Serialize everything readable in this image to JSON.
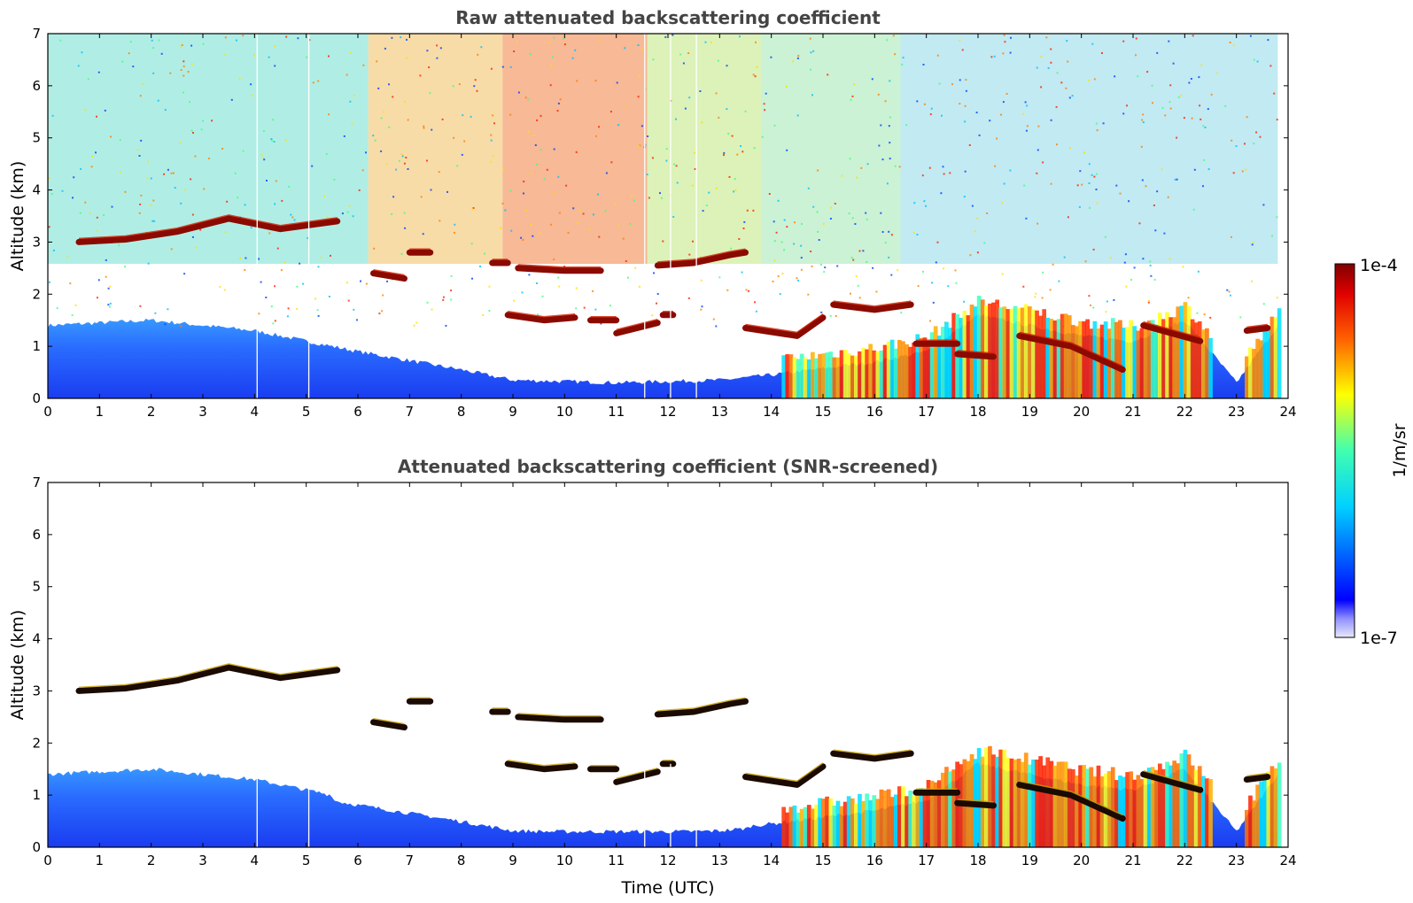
{
  "chart_data": [
    {
      "type": "heatmap",
      "title": "Raw attenuated backscattering coefficient",
      "xlabel": "",
      "ylabel": "Altitude (km)",
      "xlim": [
        0,
        24
      ],
      "ylim": [
        0,
        7
      ],
      "xticks": [
        "0",
        "1",
        "2",
        "3",
        "4",
        "5",
        "6",
        "7",
        "8",
        "9",
        "10",
        "11",
        "12",
        "13",
        "14",
        "15",
        "16",
        "17",
        "18",
        "19",
        "20",
        "21",
        "22",
        "23",
        "24"
      ],
      "yticks": [
        "0",
        "1",
        "2",
        "3",
        "4",
        "5",
        "6",
        "7"
      ],
      "screened": false,
      "data_gaps_hours": [
        4.05,
        5.05,
        11.55,
        12.05,
        12.55
      ],
      "cloud_layers": [
        {
          "x": [
            0.6,
            1.5,
            2.5,
            3.5,
            4.5,
            5.6
          ],
          "base_km": [
            3.0,
            3.05,
            3.2,
            3.45,
            3.25,
            3.4
          ]
        },
        {
          "x": [
            6.3,
            6.9
          ],
          "base_km": [
            2.4,
            2.3
          ]
        },
        {
          "x": [
            7.0,
            7.4
          ],
          "base_km": [
            2.8,
            2.8
          ]
        },
        {
          "x": [
            8.6,
            8.9
          ],
          "base_km": [
            2.6,
            2.6
          ]
        },
        {
          "x": [
            9.1,
            10.0,
            10.7
          ],
          "base_km": [
            2.5,
            2.45,
            2.45
          ]
        },
        {
          "x": [
            8.9,
            9.6,
            10.2
          ],
          "base_km": [
            1.6,
            1.5,
            1.55
          ]
        },
        {
          "x": [
            10.5,
            11.0
          ],
          "base_km": [
            1.5,
            1.5
          ]
        },
        {
          "x": [
            11.0,
            11.8
          ],
          "base_km": [
            1.25,
            1.45
          ]
        },
        {
          "x": [
            11.9,
            12.1
          ],
          "base_km": [
            1.6,
            1.6
          ]
        },
        {
          "x": [
            11.8,
            12.5,
            13.2,
            13.5
          ],
          "base_km": [
            2.55,
            2.6,
            2.75,
            2.8
          ]
        },
        {
          "x": [
            13.5,
            14.5,
            15.0
          ],
          "base_km": [
            1.35,
            1.2,
            1.55
          ]
        },
        {
          "x": [
            15.2,
            16.0,
            16.7
          ],
          "base_km": [
            1.8,
            1.7,
            1.8
          ]
        },
        {
          "x": [
            16.8,
            17.6
          ],
          "base_km": [
            1.05,
            1.05
          ]
        },
        {
          "x": [
            17.6,
            18.3
          ],
          "base_km": [
            0.85,
            0.8
          ]
        },
        {
          "x": [
            18.8,
            19.8,
            20.8
          ],
          "base_km": [
            1.2,
            1.0,
            0.55
          ]
        },
        {
          "x": [
            21.2,
            22.3
          ],
          "base_km": [
            1.4,
            1.1
          ]
        },
        {
          "x": [
            23.2,
            23.6
          ],
          "base_km": [
            1.3,
            1.35
          ]
        }
      ],
      "boundary_layer_top_km": {
        "x": [
          0,
          2,
          4,
          6,
          8,
          9,
          11,
          13,
          14,
          16,
          17,
          18,
          19,
          20,
          21,
          22,
          23,
          23.8
        ],
        "y": [
          1.4,
          1.5,
          1.3,
          0.9,
          0.55,
          0.35,
          0.3,
          0.35,
          0.45,
          0.7,
          0.9,
          1.6,
          1.4,
          1.2,
          1.1,
          1.5,
          0.3,
          1.4
        ]
      }
    },
    {
      "type": "heatmap",
      "title": "Attenuated backscattering coefficient (SNR-screened)",
      "xlabel": "Time (UTC)",
      "ylabel": "Altitude (km)",
      "xlim": [
        0,
        24
      ],
      "ylim": [
        0,
        7
      ],
      "xticks": [
        "0",
        "1",
        "2",
        "3",
        "4",
        "5",
        "6",
        "7",
        "8",
        "9",
        "10",
        "11",
        "12",
        "13",
        "14",
        "15",
        "16",
        "17",
        "18",
        "19",
        "20",
        "21",
        "22",
        "23",
        "24"
      ],
      "yticks": [
        "0",
        "1",
        "2",
        "3",
        "4",
        "5",
        "6",
        "7"
      ],
      "screened": true
    }
  ],
  "colorbar": {
    "label": "1/m/sr",
    "min_label": "1e-7",
    "max_label": "1e-4",
    "scale": "log",
    "colormap": [
      "#e8e8f8",
      "#00008f",
      "#0000ff",
      "#0080ff",
      "#00ffff",
      "#80ff80",
      "#ffff00",
      "#ff8000",
      "#ff0000",
      "#800000"
    ]
  }
}
